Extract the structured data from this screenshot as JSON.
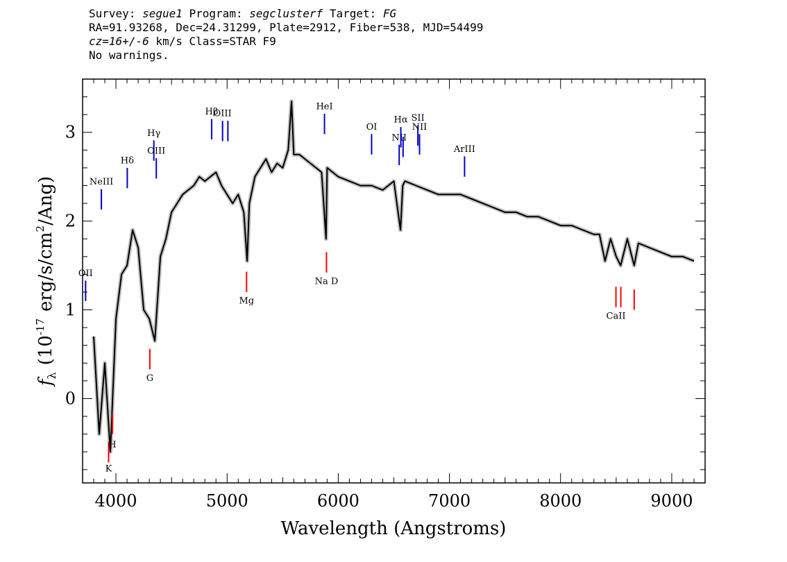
{
  "header": {
    "survey_label": "Survey:",
    "survey": "segue1",
    "program_label": "Program:",
    "program": "segclusterf",
    "target_label": "Target:",
    "target": "FG",
    "line2": "RA=91.93268, Dec=24.31299, Plate=2912, Fiber=538, MJD=54499",
    "cz": "cz=16+/-6",
    "cz_units": "km/s",
    "class_label": "Class=STAR F9",
    "warnings": "No warnings."
  },
  "chart_data": {
    "type": "line",
    "xlabel": "Wavelength (Angstroms)",
    "ylabel_main": "f",
    "ylabel_sub": "λ",
    "ylabel_rest_1": "(10",
    "ylabel_exp1": "-17",
    "ylabel_rest_2": "erg/s/cm",
    "ylabel_exp2": "2",
    "ylabel_rest_3": "/Ang)",
    "xlim": [
      3700,
      9300
    ],
    "ylim": [
      -0.95,
      3.6
    ],
    "x_ticks": [
      4000,
      5000,
      6000,
      7000,
      8000,
      9000
    ],
    "x_tick_labels": [
      "4000",
      "5000",
      "6000",
      "7000",
      "8000",
      "9000"
    ],
    "y_ticks": [
      0,
      1,
      2,
      3
    ],
    "y_tick_labels": [
      "0",
      "1",
      "2",
      "3"
    ],
    "series": [
      {
        "color": "#000000",
        "x": [
          3800,
          3850,
          3900,
          3950,
          4000,
          4050,
          4100,
          4150,
          4200,
          4250,
          4300,
          4350,
          4400,
          4450,
          4500,
          4550,
          4600,
          4650,
          4700,
          4750,
          4800,
          4850,
          4900,
          4950,
          5000,
          5050,
          5100,
          5150,
          5180,
          5200,
          5250,
          5300,
          5350,
          5400,
          5450,
          5500,
          5550,
          5580,
          5600,
          5650,
          5700,
          5750,
          5800,
          5850,
          5890,
          5900,
          5950,
          6000,
          6100,
          6200,
          6300,
          6400,
          6500,
          6560,
          6580,
          6600,
          6700,
          6800,
          6900,
          7000,
          7100,
          7200,
          7300,
          7400,
          7500,
          7600,
          7700,
          7800,
          7900,
          8000,
          8100,
          8200,
          8300,
          8350,
          8400,
          8450,
          8500,
          8540,
          8600,
          8662,
          8700,
          8800,
          8900,
          9000,
          9100,
          9200
        ],
        "y": [
          0.7,
          -0.4,
          0.4,
          -0.6,
          0.9,
          1.4,
          1.5,
          1.9,
          1.7,
          1.0,
          0.9,
          0.65,
          1.6,
          1.8,
          2.1,
          2.2,
          2.3,
          2.35,
          2.4,
          2.5,
          2.45,
          2.5,
          2.55,
          2.4,
          2.3,
          2.2,
          2.3,
          2.1,
          1.55,
          2.2,
          2.5,
          2.6,
          2.7,
          2.55,
          2.65,
          2.6,
          2.8,
          3.35,
          2.75,
          2.75,
          2.7,
          2.65,
          2.6,
          2.55,
          1.8,
          2.6,
          2.55,
          2.5,
          2.45,
          2.4,
          2.4,
          2.35,
          2.45,
          1.9,
          2.4,
          2.45,
          2.4,
          2.35,
          2.3,
          2.3,
          2.3,
          2.25,
          2.2,
          2.15,
          2.1,
          2.1,
          2.05,
          2.05,
          2.0,
          1.95,
          1.95,
          1.9,
          1.85,
          1.85,
          1.55,
          1.8,
          1.6,
          1.5,
          1.8,
          1.5,
          1.75,
          1.7,
          1.65,
          1.6,
          1.6,
          1.55
        ]
      },
      {
        "color": "#c0c0c0",
        "x": [
          3800,
          3850,
          3900,
          3950,
          4000,
          4050,
          4100,
          4150,
          4200,
          4250,
          4300,
          4350,
          4400,
          4450,
          4500,
          4550,
          4600,
          4650,
          4700,
          4750,
          4800,
          4850,
          4900,
          4950,
          5000,
          5050,
          5100,
          5150,
          5180,
          5200,
          5250,
          5300,
          5350,
          5400,
          5450,
          5500,
          5550,
          5580,
          5600,
          5650,
          5700,
          5750,
          5800,
          5850,
          5890,
          5900,
          5950,
          6000,
          6100,
          6200,
          6300,
          6400,
          6500,
          6560,
          6580,
          6600,
          6700,
          6800,
          6900,
          7000,
          7100,
          7200,
          7300,
          7400,
          7500,
          7600,
          7700,
          7800,
          7900,
          8000,
          8100,
          8200,
          8300,
          8350,
          8400,
          8450,
          8500,
          8540,
          8600,
          8662,
          8700,
          8800,
          8900,
          9000,
          9100,
          9200
        ],
        "y": [
          0.7,
          -0.4,
          0.4,
          -0.6,
          0.9,
          1.4,
          1.5,
          1.9,
          1.7,
          1.0,
          0.9,
          0.65,
          1.6,
          1.8,
          2.1,
          2.2,
          2.3,
          2.35,
          2.4,
          2.5,
          2.45,
          2.5,
          2.55,
          2.4,
          2.3,
          2.2,
          2.3,
          2.1,
          1.55,
          2.2,
          2.5,
          2.6,
          2.7,
          2.55,
          2.65,
          2.6,
          2.8,
          3.35,
          2.75,
          2.75,
          2.7,
          2.65,
          2.6,
          2.55,
          1.8,
          2.6,
          2.55,
          2.5,
          2.45,
          2.4,
          2.4,
          2.35,
          2.45,
          1.9,
          2.4,
          2.45,
          2.4,
          2.35,
          2.3,
          2.3,
          2.3,
          2.25,
          2.2,
          2.15,
          2.1,
          2.1,
          2.05,
          2.05,
          2.0,
          1.95,
          1.95,
          1.9,
          1.85,
          1.85,
          1.55,
          1.8,
          1.6,
          1.5,
          1.8,
          1.5,
          1.75,
          1.7,
          1.65,
          1.6,
          1.6,
          1.55
        ]
      }
    ],
    "emission_lines": [
      {
        "label": "OII",
        "x": 3727,
        "y1": 1.1,
        "y2": 1.33,
        "label_y": 1.38,
        "color": "#0000cc"
      },
      {
        "label": "NeIII",
        "x": 3869,
        "y1": 2.13,
        "y2": 2.36,
        "label_y": 2.41,
        "color": "#0000cc"
      },
      {
        "label": "Hδ",
        "x": 4102,
        "y1": 2.37,
        "y2": 2.6,
        "label_y": 2.65,
        "color": "#0000cc"
      },
      {
        "label": "Hγ",
        "x": 4341,
        "y1": 2.68,
        "y2": 2.91,
        "label_y": 2.96,
        "color": "#0000cc"
      },
      {
        "label": "OIII",
        "x": 4363,
        "y1": 2.48,
        "y2": 2.71,
        "label_y": 2.76,
        "color": "#0000cc"
      },
      {
        "label": "Hβ",
        "x": 4861,
        "y1": 2.92,
        "y2": 3.15,
        "label_y": 3.2,
        "color": "#0000cc"
      },
      {
        "label": "OIII",
        "x": 4959,
        "y1": 2.9,
        "y2": 3.13,
        "label_y": 3.18,
        "color": "#0000cc"
      },
      {
        "label": "",
        "x": 5007,
        "y1": 2.9,
        "y2": 3.13,
        "label_y": 3.18,
        "color": "#0000cc"
      },
      {
        "label": "HeI",
        "x": 5876,
        "y1": 2.98,
        "y2": 3.21,
        "label_y": 3.26,
        "color": "#0000cc"
      },
      {
        "label": "OI",
        "x": 6300,
        "y1": 2.75,
        "y2": 2.98,
        "label_y": 3.03,
        "color": "#0000cc"
      },
      {
        "label": "NII",
        "x": 6548,
        "y1": 2.63,
        "y2": 2.86,
        "label_y": 2.91,
        "color": "#0000cc"
      },
      {
        "label": "Hα",
        "x": 6563,
        "y1": 2.83,
        "y2": 3.06,
        "label_y": 3.11,
        "color": "#0000cc"
      },
      {
        "label": "",
        "x": 6583,
        "y1": 2.72,
        "y2": 2.95,
        "label_y": 3.0,
        "color": "#0000cc"
      },
      {
        "label": "SII",
        "x": 6716,
        "y1": 2.85,
        "y2": 3.08,
        "label_y": 3.13,
        "color": "#0000cc"
      },
      {
        "label": "NII",
        "x": 6731,
        "y1": 2.75,
        "y2": 2.98,
        "label_y": 3.03,
        "color": "#0000cc"
      },
      {
        "label": "ArIII",
        "x": 7136,
        "y1": 2.5,
        "y2": 2.73,
        "label_y": 2.78,
        "color": "#0000cc"
      }
    ],
    "absorption_lines": [
      {
        "label": "K",
        "x": 3934,
        "y1": -0.72,
        "y2": -0.49,
        "label_y": -0.82,
        "color": "#ff0000"
      },
      {
        "label": "H",
        "x": 3968,
        "y1": -0.4,
        "y2": -0.17,
        "label_y": -0.55,
        "color": "#ff0000"
      },
      {
        "label": "G",
        "x": 4305,
        "y1": 0.33,
        "y2": 0.56,
        "label_y": 0.2,
        "color": "#ff0000"
      },
      {
        "label": "Mg",
        "x": 5175,
        "y1": 1.2,
        "y2": 1.43,
        "label_y": 1.07,
        "color": "#ff0000"
      },
      {
        "label": "Na D",
        "x": 5894,
        "y1": 1.42,
        "y2": 1.65,
        "label_y": 1.29,
        "color": "#ff0000"
      },
      {
        "label": "CaII",
        "x": 8498,
        "y1": 1.03,
        "y2": 1.26,
        "label_y": 0.9,
        "color": "#ff0000"
      },
      {
        "label": "",
        "x": 8542,
        "y1": 1.03,
        "y2": 1.26,
        "label_y": 0.9,
        "color": "#ff0000"
      },
      {
        "label": "",
        "x": 8662,
        "y1": 1.0,
        "y2": 1.23,
        "label_y": 0.87,
        "color": "#ff0000"
      }
    ]
  }
}
